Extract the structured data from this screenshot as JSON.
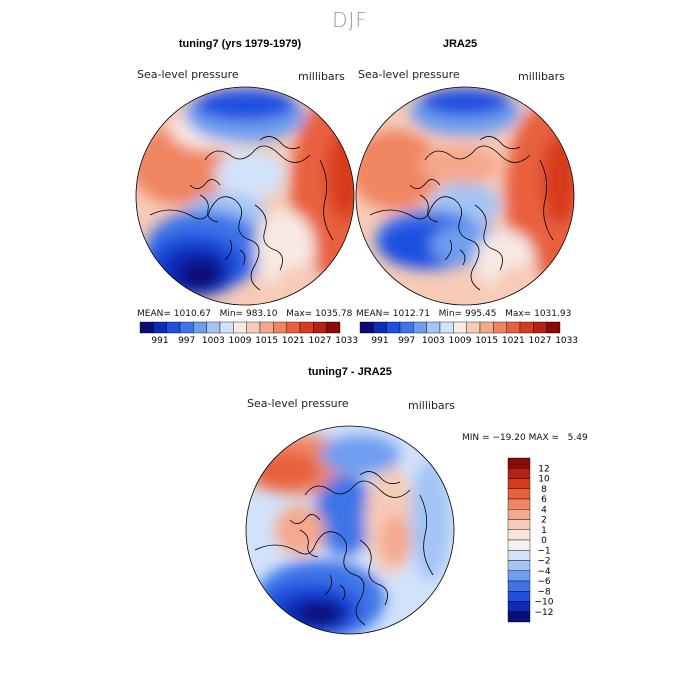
{
  "season": "DJF",
  "panels": [
    {
      "title": "tuning7 (yrs 1979-1979)",
      "variable": "Sea-level pressure",
      "units": "millibars",
      "stats": {
        "mean_label": "MEAN=",
        "mean": "1010.67",
        "min_label": "Min=",
        "min": "983.10",
        "max_label": "Max=",
        "max": "1035.78"
      }
    },
    {
      "title": "JRA25",
      "variable": "Sea-level pressure",
      "units": "millibars",
      "stats": {
        "mean_label": "MEAN=",
        "mean": "1012.71",
        "min_label": "Min=",
        "min": "995.45",
        "max_label": "Max=",
        "max": "1031.93"
      }
    },
    {
      "title": "tuning7 - JRA25",
      "variable": "Sea-level pressure",
      "units": "millibars",
      "minmax": "MIN = −19.20 MAX =   5.49"
    }
  ],
  "colorbar_abs": {
    "labels": [
      "991",
      "997",
      "1003",
      "1009",
      "1015",
      "1021",
      "1027",
      "1033"
    ],
    "colors": [
      "#0a0c78",
      "#0e2bb8",
      "#1f4fe0",
      "#3e74e8",
      "#6f9ef0",
      "#a3c4f5",
      "#d2e2fa",
      "#f7eae4",
      "#f7cbb8",
      "#f5a98c",
      "#f08562",
      "#e8603c",
      "#d73b1e",
      "#b52112",
      "#8a0a08"
    ]
  },
  "colorbar_diff": {
    "labels": [
      "12",
      "10",
      "8",
      "6",
      "4",
      "2",
      "1",
      "0",
      "−1",
      "−2",
      "−4",
      "−6",
      "−8",
      "−10",
      "−12"
    ],
    "colors": [
      "#8a0a08",
      "#b52112",
      "#d73b1e",
      "#e8603c",
      "#f08562",
      "#f5a98c",
      "#f7cbb8",
      "#f9e4da",
      "#f2f2f2",
      "#d2e2fa",
      "#a3c4f5",
      "#6f9ef0",
      "#3e74e8",
      "#1f4fe0",
      "#0e2bb8",
      "#0a0c78"
    ]
  }
}
